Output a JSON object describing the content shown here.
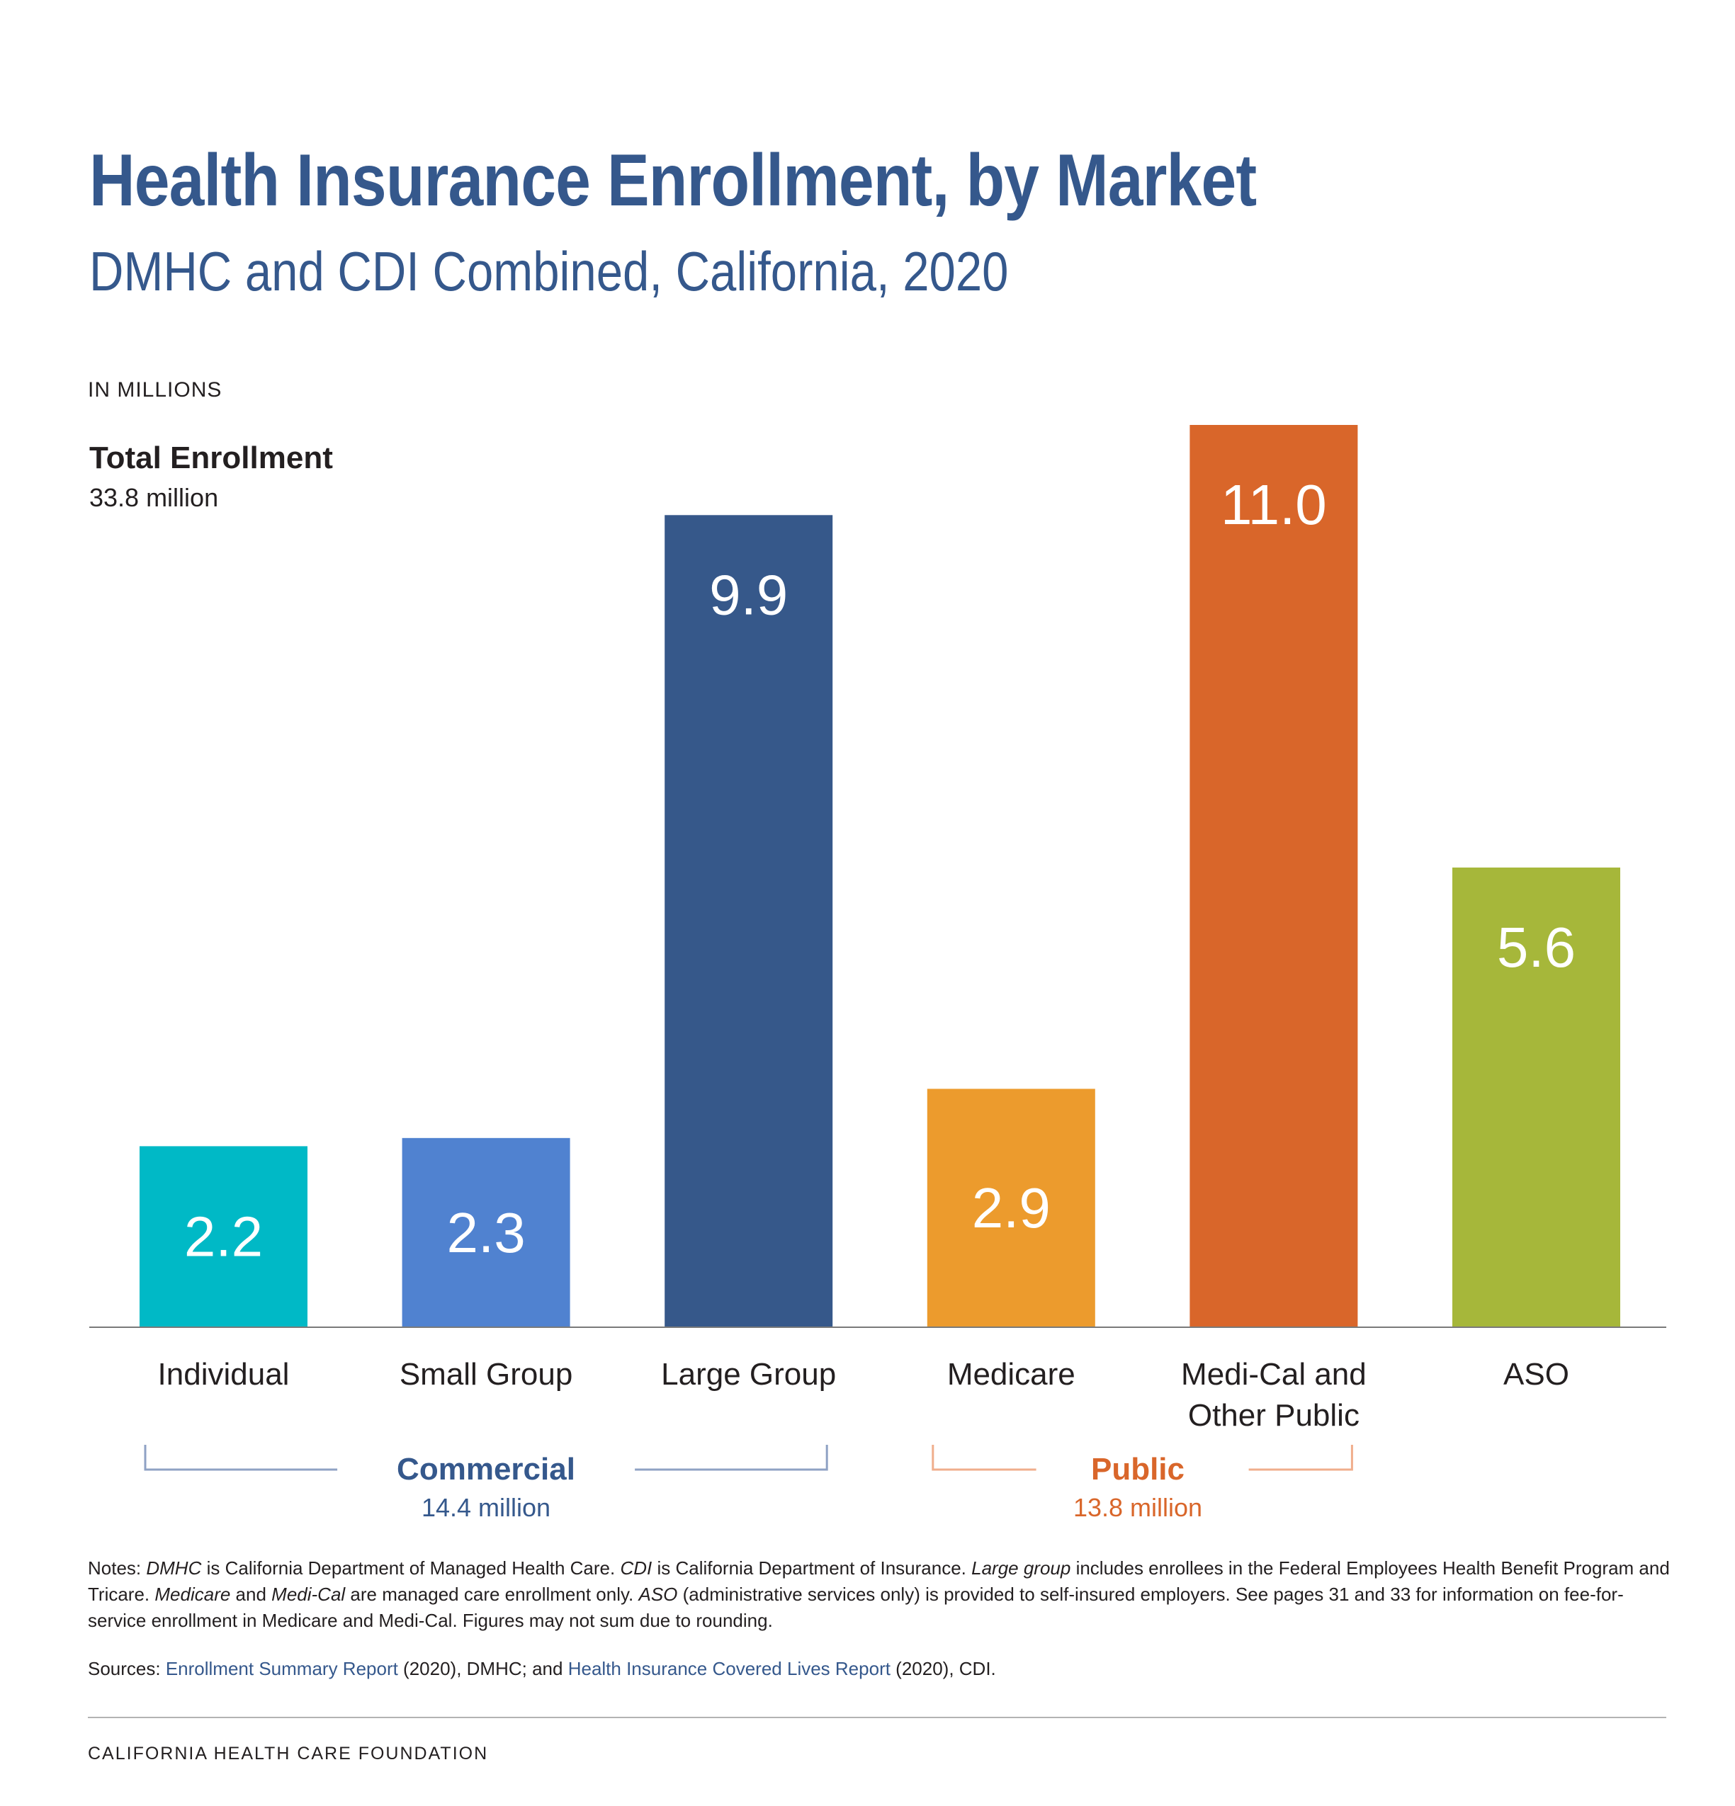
{
  "header": {
    "title": "Health Insurance Enrollment, by Market",
    "subtitle": "DMHC and CDI Combined, California, 2020",
    "unit_label": "IN MILLIONS",
    "total_label": "Total Enrollment",
    "total_value": "33.8 million"
  },
  "chart_data": {
    "type": "bar",
    "categories": [
      "Individual",
      "Small Group",
      "Large Group",
      "Medicare",
      "Medi-Cal and Other Public",
      "ASO"
    ],
    "category_lines": [
      [
        "Individual"
      ],
      [
        "Small Group"
      ],
      [
        "Large Group"
      ],
      [
        "Medicare"
      ],
      [
        "Medi-Cal and",
        "Other Public"
      ],
      [
        "ASO"
      ]
    ],
    "values": [
      2.2,
      2.3,
      9.9,
      2.9,
      11.0,
      5.6
    ],
    "value_labels": [
      "2.2",
      "2.3",
      "9.9",
      "2.9",
      "11.0",
      "5.6"
    ],
    "colors": [
      "#00b9c6",
      "#5082d0",
      "#36588a",
      "#ec9b2d",
      "#d9662a",
      "#a6b73a"
    ],
    "ylim": [
      0,
      11.0
    ],
    "grid": false,
    "groups": [
      {
        "name": "Commercial",
        "total": "14.4 million",
        "start": 0,
        "end": 2,
        "color": "#35588c",
        "bracket_color": "#8fa2c4"
      },
      {
        "name": "Public",
        "total": "13.8 million",
        "start": 3,
        "end": 4,
        "color": "#d9662a",
        "bracket_color": "#f0ae8c"
      }
    ]
  },
  "notes": {
    "prefix": "Notes: ",
    "t1": "DMHC",
    "t2": " is California Department of Managed Health Care. ",
    "t3": "CDI",
    "t4": " is California Department of Insurance. ",
    "t5": "Large group",
    "t6": " includes enrollees in the Federal Employees Health Benefit Program and Tricare. ",
    "t7": "Medicare",
    "t8": " and ",
    "t9": "Medi-Cal",
    "t10": " are managed care enrollment only. ",
    "t11": "ASO",
    "t12": " (administrative services only) is provided to self-insured employers. See pages 31 and 33 for information on fee-for-service enrollment in Medicare and Medi-Cal. Figures may not sum due to rounding."
  },
  "sources": {
    "prefix": "Sources: ",
    "link1": "Enrollment Summary Report",
    "mid": " (2020), DMHC; and ",
    "link2": "Health Insurance Covered Lives Report",
    "suffix": " (2020), CDI."
  },
  "footer": "CALIFORNIA HEALTH CARE FOUNDATION"
}
